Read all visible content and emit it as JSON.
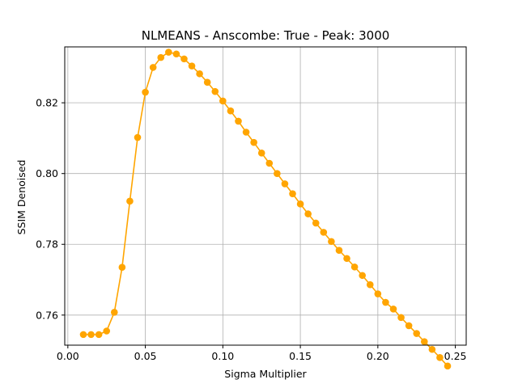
{
  "chart_data": {
    "type": "line",
    "title": "NLMEANS - Anscombe: True - Peak: 3000",
    "xlabel": "Sigma Multiplier",
    "ylabel": "SSIM Denoised",
    "xlim": [
      -0.002,
      0.257
    ],
    "ylim": [
      0.7515,
      0.8358
    ],
    "xticks": [
      0.0,
      0.05,
      0.1,
      0.15,
      0.2,
      0.25
    ],
    "xtick_labels": [
      "0.00",
      "0.05",
      "0.10",
      "0.15",
      "0.20",
      "0.25"
    ],
    "yticks": [
      0.76,
      0.78,
      0.8,
      0.82
    ],
    "ytick_labels": [
      "0.76",
      "0.78",
      "0.80",
      "0.82"
    ],
    "grid": true,
    "color": "#ffa500",
    "series": [
      {
        "x": [
          0.01,
          0.015,
          0.02,
          0.025,
          0.03,
          0.035,
          0.04,
          0.045,
          0.05,
          0.055,
          0.06,
          0.065,
          0.07,
          0.075,
          0.08,
          0.085,
          0.09,
          0.095,
          0.1,
          0.105,
          0.11,
          0.115,
          0.12,
          0.125,
          0.13,
          0.135,
          0.14,
          0.145,
          0.15,
          0.155,
          0.16,
          0.165,
          0.17,
          0.175,
          0.18,
          0.185,
          0.19,
          0.195,
          0.2,
          0.205,
          0.21,
          0.215,
          0.22,
          0.225,
          0.23,
          0.235,
          0.24,
          0.245
        ],
        "y": [
          0.7545,
          0.7545,
          0.7545,
          0.7555,
          0.7608,
          0.7735,
          0.7922,
          0.8102,
          0.823,
          0.83,
          0.8328,
          0.8343,
          0.8338,
          0.8324,
          0.8304,
          0.8282,
          0.8258,
          0.8232,
          0.8205,
          0.8177,
          0.8148,
          0.8117,
          0.8088,
          0.8058,
          0.8029,
          0.8,
          0.7971,
          0.7943,
          0.7914,
          0.7886,
          0.786,
          0.7834,
          0.7808,
          0.7783,
          0.776,
          0.7736,
          0.7712,
          0.7686,
          0.766,
          0.7636,
          0.7617,
          0.7593,
          0.757,
          0.7548,
          0.7525,
          0.7503,
          0.748,
          0.7456
        ]
      }
    ]
  }
}
